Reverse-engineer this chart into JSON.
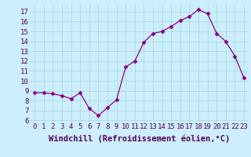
{
  "x": [
    0,
    1,
    2,
    3,
    4,
    5,
    6,
    7,
    8,
    9,
    10,
    11,
    12,
    13,
    14,
    15,
    16,
    17,
    18,
    19,
    20,
    21,
    22,
    23
  ],
  "y": [
    8.8,
    8.8,
    8.7,
    8.5,
    8.2,
    8.8,
    7.2,
    6.5,
    7.3,
    8.1,
    11.4,
    12.0,
    13.9,
    14.8,
    15.0,
    15.5,
    16.1,
    16.5,
    17.2,
    16.8,
    14.8,
    14.0,
    12.5,
    10.3
  ],
  "xlim": [
    -0.5,
    23.5
  ],
  "ylim": [
    5.8,
    17.7
  ],
  "yticks": [
    6,
    7,
    8,
    9,
    10,
    11,
    12,
    13,
    14,
    15,
    16,
    17
  ],
  "xticks": [
    0,
    1,
    2,
    3,
    4,
    5,
    6,
    7,
    8,
    9,
    10,
    11,
    12,
    13,
    14,
    15,
    16,
    17,
    18,
    19,
    20,
    21,
    22,
    23
  ],
  "xlabel": "Windchill (Refroidissement éolien,°C)",
  "line_color": "#880088",
  "marker": "D",
  "marker_size": 2.5,
  "bg_color": "#cceeff",
  "grid_color": "#aadddd",
  "tick_label_fontsize": 6.5,
  "xlabel_fontsize": 7.5
}
